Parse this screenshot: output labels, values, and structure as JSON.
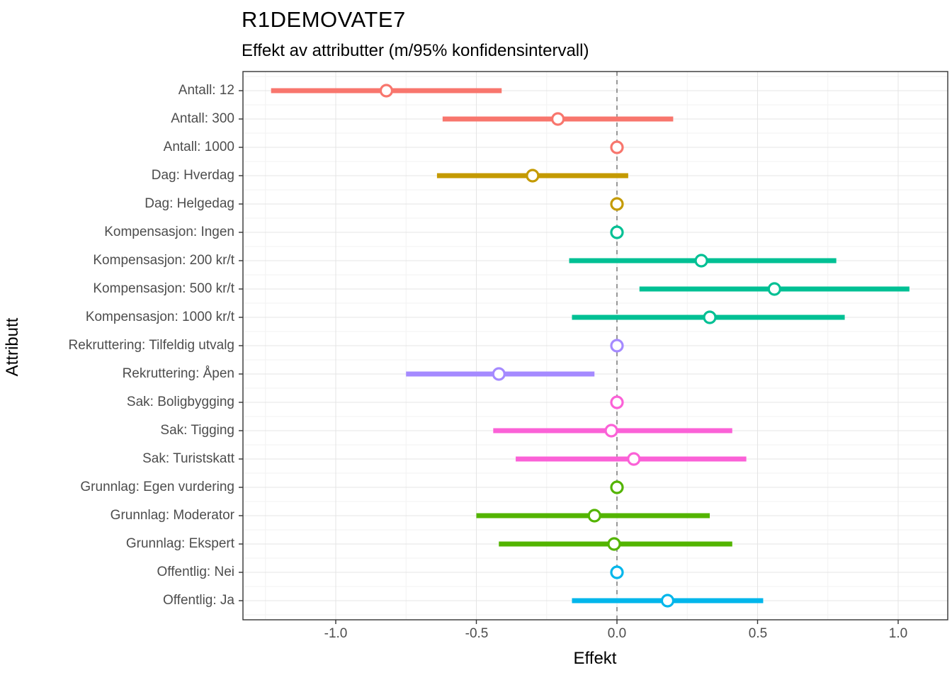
{
  "header": {
    "title": "R1DEMOVATE7",
    "subtitle": "Effekt av attributter (m/95% konfidensintervall)"
  },
  "chart_data": {
    "type": "pointrange",
    "title": "R1DEMOVATE7",
    "subtitle": "Effekt av attributter (m/95% konfidensintervall)",
    "xlabel": "Effekt",
    "ylabel": "Attributt",
    "xlim": [
      -1.33,
      1.18
    ],
    "x_ticks": [
      -1.0,
      -0.5,
      0.0,
      0.5,
      1.0
    ],
    "x_tick_labels": [
      "-1.0",
      "-0.5",
      "0.0",
      "0.5",
      "1.0"
    ],
    "zero_reference_line": 0,
    "grid": true,
    "legend": "none",
    "group_colors": {
      "Antall": "#F8766D",
      "Dag": "#C49A00",
      "Kompensasjon": "#00C094",
      "Rekruttering": "#A58AFF",
      "Sak": "#FB61D7",
      "Grunnlag": "#53B400",
      "Offentlig": "#00B6EB"
    },
    "rows": [
      {
        "label": "Antall: 12",
        "group": "Antall",
        "estimate": -0.82,
        "ci_low": -1.23,
        "ci_high": -0.41,
        "reference": false
      },
      {
        "label": "Antall: 300",
        "group": "Antall",
        "estimate": -0.21,
        "ci_low": -0.62,
        "ci_high": 0.2,
        "reference": false
      },
      {
        "label": "Antall: 1000",
        "group": "Antall",
        "estimate": 0.0,
        "ci_low": 0.0,
        "ci_high": 0.0,
        "reference": true
      },
      {
        "label": "Dag: Hverdag",
        "group": "Dag",
        "estimate": -0.3,
        "ci_low": -0.64,
        "ci_high": 0.04,
        "reference": false
      },
      {
        "label": "Dag: Helgedag",
        "group": "Dag",
        "estimate": 0.0,
        "ci_low": 0.0,
        "ci_high": 0.0,
        "reference": true
      },
      {
        "label": "Kompensasjon: Ingen",
        "group": "Kompensasjon",
        "estimate": 0.0,
        "ci_low": 0.0,
        "ci_high": 0.0,
        "reference": true
      },
      {
        "label": "Kompensasjon: 200 kr/t",
        "group": "Kompensasjon",
        "estimate": 0.3,
        "ci_low": -0.17,
        "ci_high": 0.78,
        "reference": false
      },
      {
        "label": "Kompensasjon: 500 kr/t",
        "group": "Kompensasjon",
        "estimate": 0.56,
        "ci_low": 0.08,
        "ci_high": 1.04,
        "reference": false
      },
      {
        "label": "Kompensasjon: 1000 kr/t",
        "group": "Kompensasjon",
        "estimate": 0.33,
        "ci_low": -0.16,
        "ci_high": 0.81,
        "reference": false
      },
      {
        "label": "Rekruttering: Tilfeldig utvalg",
        "group": "Rekruttering",
        "estimate": 0.0,
        "ci_low": 0.0,
        "ci_high": 0.0,
        "reference": true
      },
      {
        "label": "Rekruttering: Åpen",
        "group": "Rekruttering",
        "estimate": -0.42,
        "ci_low": -0.75,
        "ci_high": -0.08,
        "reference": false
      },
      {
        "label": "Sak: Boligbygging",
        "group": "Sak",
        "estimate": 0.0,
        "ci_low": 0.0,
        "ci_high": 0.0,
        "reference": true
      },
      {
        "label": "Sak: Tigging",
        "group": "Sak",
        "estimate": -0.02,
        "ci_low": -0.44,
        "ci_high": 0.41,
        "reference": false
      },
      {
        "label": "Sak: Turistskatt",
        "group": "Sak",
        "estimate": 0.06,
        "ci_low": -0.36,
        "ci_high": 0.46,
        "reference": false
      },
      {
        "label": "Grunnlag: Egen vurdering",
        "group": "Grunnlag",
        "estimate": 0.0,
        "ci_low": 0.0,
        "ci_high": 0.0,
        "reference": true
      },
      {
        "label": "Grunnlag: Moderator",
        "group": "Grunnlag",
        "estimate": -0.08,
        "ci_low": -0.5,
        "ci_high": 0.33,
        "reference": false
      },
      {
        "label": "Grunnlag: Ekspert",
        "group": "Grunnlag",
        "estimate": -0.01,
        "ci_low": -0.42,
        "ci_high": 0.41,
        "reference": false
      },
      {
        "label": "Offentlig: Nei",
        "group": "Offentlig",
        "estimate": 0.0,
        "ci_low": 0.0,
        "ci_high": 0.0,
        "reference": true
      },
      {
        "label": "Offentlig: Ja",
        "group": "Offentlig",
        "estimate": 0.18,
        "ci_low": -0.16,
        "ci_high": 0.52,
        "reference": false
      }
    ]
  }
}
